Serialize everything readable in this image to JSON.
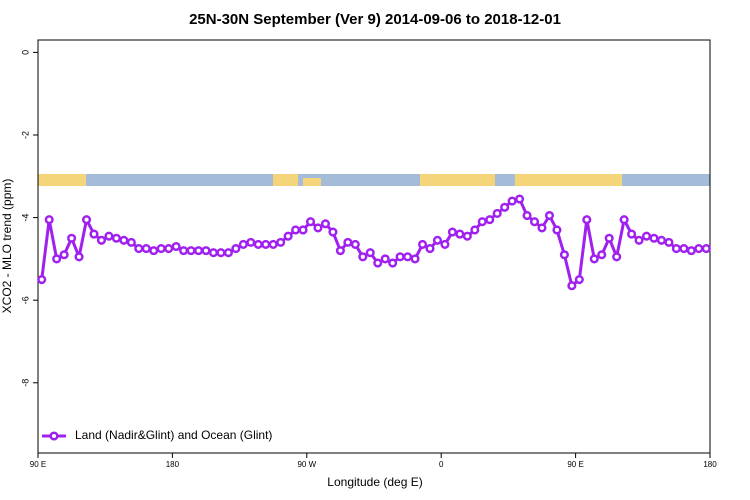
{
  "chart_data": {
    "type": "line",
    "title": "25N-30N September (Ver 9)   2014-09-06 to 2018-12-01",
    "xlabel": "Longitude (deg E)",
    "ylabel": "XCO2 - MLO trend (ppm)",
    "x": [
      92.5,
      97.5,
      102.5,
      107.5,
      112.5,
      117.5,
      122.5,
      127.5,
      132.5,
      137.5,
      142.5,
      147.5,
      152.5,
      157.5,
      162.5,
      167.5,
      172.5,
      177.5,
      182.5,
      187.5,
      192.5,
      197.5,
      202.5,
      207.5,
      212.5,
      217.5,
      222.5,
      227.5,
      232.5,
      237.5,
      242.5,
      247.5,
      252.5,
      257.5,
      262.5,
      267.5,
      272.5,
      277.5,
      282.5,
      287.5,
      292.5,
      297.5,
      302.5,
      307.5,
      312.5,
      317.5,
      322.5,
      327.5,
      332.5,
      337.5,
      342.5,
      347.5,
      352.5,
      357.5,
      362.5,
      367.5,
      372.5,
      377.5,
      382.5,
      387.5,
      392.5,
      397.5,
      402.5,
      407.5,
      412.5,
      417.5,
      422.5,
      427.5,
      432.5,
      437.5,
      442.5,
      447.5,
      452.5,
      457.5,
      462.5,
      467.5,
      472.5,
      477.5,
      482.5,
      487.5,
      492.5,
      497.5,
      502.5,
      507.5,
      512.5,
      517.5,
      522.5,
      527.5,
      532.5,
      537.5
    ],
    "series": [
      {
        "name": "Land (Nadir&Glint) and Ocean (Glint)",
        "color": "#a020f0",
        "values": [
          -5.5,
          -4.05,
          -5.0,
          -4.9,
          -4.5,
          -4.95,
          -4.05,
          -4.4,
          -4.55,
          -4.45,
          -4.5,
          -4.55,
          -4.6,
          -4.75,
          -4.75,
          -4.8,
          -4.75,
          -4.75,
          -4.7,
          -4.8,
          -4.8,
          -4.8,
          -4.8,
          -4.85,
          -4.85,
          -4.85,
          -4.75,
          -4.65,
          -4.6,
          -4.65,
          -4.65,
          -4.65,
          -4.6,
          -4.45,
          -4.3,
          -4.3,
          -4.1,
          -4.25,
          -4.15,
          -4.35,
          -4.8,
          -4.6,
          -4.65,
          -4.95,
          -4.85,
          -5.1,
          -5.0,
          -5.1,
          -4.95,
          -4.95,
          -5.0,
          -4.65,
          -4.75,
          -4.55,
          -4.65,
          -4.35,
          -4.4,
          -4.45,
          -4.3,
          -4.1,
          -4.05,
          -3.9,
          -3.75,
          -3.6,
          -3.55,
          -3.95,
          -4.1,
          -4.25,
          -3.95,
          -4.3,
          -4.9,
          -5.65,
          -5.5,
          -4.05,
          -5.0,
          -4.9,
          -4.5,
          -4.95,
          -4.05,
          -4.4,
          -4.55,
          -4.45,
          -4.5,
          -4.55,
          -4.6,
          -4.75,
          -4.75,
          -4.8,
          -4.75,
          -4.75
        ]
      }
    ],
    "xlim": [
      90,
      540
    ],
    "xticks": [
      {
        "value": 90,
        "label": "90 E"
      },
      180,
      {
        "value": 270,
        "label": "90 W"
      },
      {
        "value": 360,
        "label": "0"
      },
      {
        "value": 450,
        "label": "90 E"
      },
      {
        "value": 540,
        "label": "180"
      }
    ],
    "ylim": [
      -9.7,
      0.3
    ],
    "yticks": [
      0,
      -2,
      -4,
      -6,
      -8
    ],
    "legend": "bottom-left"
  }
}
